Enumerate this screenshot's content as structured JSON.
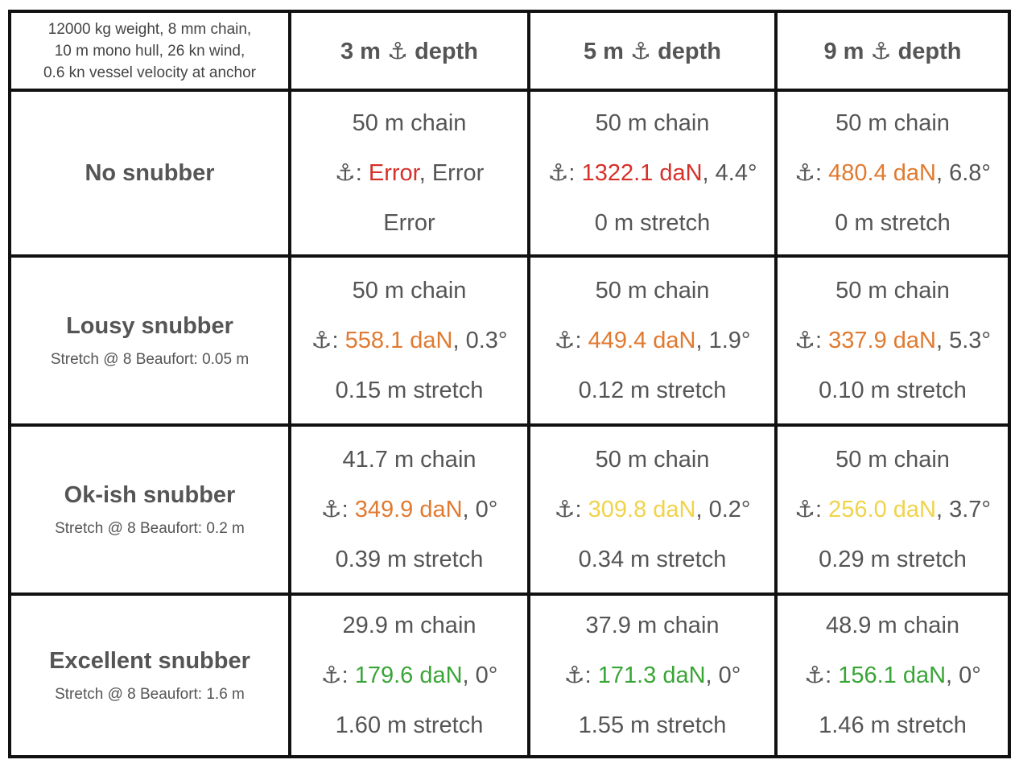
{
  "table": {
    "corner": [
      "12000 kg weight, 8 mm chain,",
      "10 m mono hull, 26 kn wind,",
      "0.6 kn vessel velocity at anchor"
    ],
    "columns": [
      "3 m ⚓ depth",
      "5 m ⚓ depth",
      "9 m ⚓ depth"
    ],
    "rows": [
      {
        "name": "No snubber",
        "cells": [
          {
            "chain": "50 m chain",
            "load": [
              {
                "text": "⚓: "
              },
              {
                "text": "Error",
                "color": "#d6302a"
              },
              {
                "text": ", Error"
              }
            ],
            "stretch": "Error"
          },
          {
            "chain": "50 m chain",
            "load": [
              {
                "text": "⚓: "
              },
              {
                "text": "1322.1 daN",
                "color": "#d6302a"
              },
              {
                "text": ", 4.4°"
              }
            ],
            "stretch": "0 m stretch"
          },
          {
            "chain": "50 m chain",
            "load": [
              {
                "text": "⚓: "
              },
              {
                "text": "480.4 daN",
                "color": "#e07a30"
              },
              {
                "text": ", 6.8°"
              }
            ],
            "stretch": "0 m stretch"
          }
        ]
      },
      {
        "name": "Lousy snubber",
        "sub": "Stretch @ 8 Beaufort: 0.05 m",
        "cells": [
          {
            "chain": "50 m chain",
            "load": [
              {
                "text": "⚓: "
              },
              {
                "text": "558.1 daN",
                "color": "#e07a30"
              },
              {
                "text": ", 0.3°"
              }
            ],
            "stretch": "0.15 m stretch"
          },
          {
            "chain": "50 m chain",
            "load": [
              {
                "text": "⚓: "
              },
              {
                "text": "449.4 daN",
                "color": "#e07a30"
              },
              {
                "text": ", 1.9°"
              }
            ],
            "stretch": "0.12 m stretch"
          },
          {
            "chain": "50 m chain",
            "load": [
              {
                "text": "⚓: "
              },
              {
                "text": "337.9 daN",
                "color": "#e07a30"
              },
              {
                "text": ", 5.3°"
              }
            ],
            "stretch": "0.10 m stretch"
          }
        ]
      },
      {
        "name": "Ok-ish snubber",
        "sub": "Stretch @ 8 Beaufort: 0.2 m",
        "cells": [
          {
            "chain": "41.7 m chain",
            "load": [
              {
                "text": "⚓: "
              },
              {
                "text": "349.9 daN",
                "color": "#e07a30"
              },
              {
                "text": ", 0°"
              }
            ],
            "stretch": "0.39 m stretch"
          },
          {
            "chain": "50 m chain",
            "load": [
              {
                "text": "⚓: "
              },
              {
                "text": "309.8 daN",
                "color": "#f0d34a"
              },
              {
                "text": ", 0.2°"
              }
            ],
            "stretch": "0.34 m stretch"
          },
          {
            "chain": "50 m chain",
            "load": [
              {
                "text": "⚓: "
              },
              {
                "text": "256.0 daN",
                "color": "#f0d34a"
              },
              {
                "text": ", 3.7°"
              }
            ],
            "stretch": "0.29 m stretch"
          }
        ]
      },
      {
        "name": "Excellent snubber",
        "sub": "Stretch @ 8 Beaufort: 1.6 m",
        "cells": [
          {
            "chain": "29.9 m chain",
            "load": [
              {
                "text": "⚓: "
              },
              {
                "text": "179.6 daN",
                "color": "#3aa537"
              },
              {
                "text": ", 0°"
              }
            ],
            "stretch": "1.60 m stretch"
          },
          {
            "chain": "37.9 m chain",
            "load": [
              {
                "text": "⚓: "
              },
              {
                "text": "171.3 daN",
                "color": "#3aa537"
              },
              {
                "text": ", 0°"
              }
            ],
            "stretch": "1.55 m stretch"
          },
          {
            "chain": "48.9 m chain",
            "load": [
              {
                "text": "⚓: "
              },
              {
                "text": "156.1 daN",
                "color": "#3aa537"
              },
              {
                "text": ", 0°"
              }
            ],
            "stretch": "1.46 m stretch"
          }
        ]
      }
    ]
  }
}
